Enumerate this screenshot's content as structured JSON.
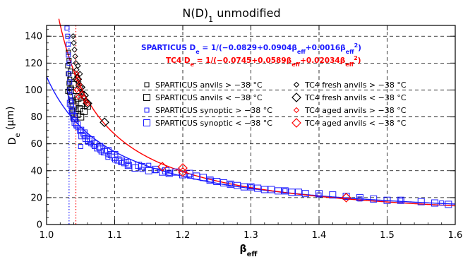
{
  "chart_data": {
    "type": "scatter",
    "title": "N(D)",
    "title_sub": "1",
    "title_tail": " unmodified",
    "xlabel": "β",
    "xlabel_sub": "eff",
    "ylabel": "D",
    "ylabel_sub": "e",
    "ylabel_unit": " (μm)",
    "xlim": [
      1.0,
      1.6
    ],
    "ylim": [
      0,
      148
    ],
    "xticks": [
      1.0,
      1.1,
      1.2,
      1.3,
      1.4,
      1.5,
      1.6
    ],
    "xtick_labels": [
      "1.0",
      "1.1",
      "1.2",
      "1.3",
      "1.4",
      "1.5",
      "1.6"
    ],
    "yticks": [
      0,
      20,
      40,
      60,
      80,
      100,
      120,
      140
    ],
    "ytick_labels": [
      "0",
      "20",
      "40",
      "60",
      "80",
      "100",
      "120",
      "140"
    ],
    "grid": true,
    "colors": {
      "sparticus": "#1a1aff",
      "tc4": "#ff0000",
      "black": "#000000"
    },
    "fits": [
      {
        "label": "SPARTICUS D",
        "label_sub": "e",
        "formula": " = 1/(−0.0829+0.0904β",
        "formula_sub1": "eff",
        "formula_mid": "+0.0016β",
        "formula_sub2": "eff",
        "formula_sup": "2",
        "formula_end": ")",
        "color": "#1a1aff",
        "coef": [
          -0.0829,
          0.0904,
          0.0016
        ],
        "asymptote": 1.033
      },
      {
        "label": "TC4 D",
        "label_sub": "e",
        "formula": " = 1/(−0.0745+0.0589β",
        "formula_sub1": "eff",
        "formula_mid": "+0.02034β",
        "formula_sub2": "eff",
        "formula_sup": "2",
        "formula_end": ")",
        "color": "#ff0000",
        "coef": [
          -0.0745,
          0.0589,
          0.02034
        ],
        "asymptote": 1.043
      }
    ],
    "legend": [
      {
        "label": "SPARTICUS anvils > −38 °C",
        "marker": "square-small",
        "color": "#000000"
      },
      {
        "label": "TC4 fresh anvils > −38 °C",
        "marker": "diamond-small",
        "color": "#000000"
      },
      {
        "label": "SPARTICUS anvils < −38 °C",
        "marker": "square-large",
        "color": "#000000"
      },
      {
        "label": "TC4 fresh anvils < −38 °C",
        "marker": "diamond-large",
        "color": "#000000"
      },
      {
        "label": "SPARTICUS synoptic > −38 °C",
        "marker": "square-small",
        "color": "#1a1aff"
      },
      {
        "label": "TC4 aged anvils > −38 °C",
        "marker": "diamond-small",
        "color": "#ff0000"
      },
      {
        "label": "SPARTICUS synoptic < −38 °C",
        "marker": "square-large",
        "color": "#1a1aff"
      },
      {
        "label": "TC4 aged anvils < −38 °C",
        "marker": "diamond-large",
        "color": "#ff0000"
      }
    ],
    "series": [
      {
        "name": "SPARTICUS anvils > −38 °C",
        "marker": "square-small",
        "color": "#000000",
        "points": [
          [
            1.031,
            118
          ],
          [
            1.032,
            112
          ],
          [
            1.033,
            105
          ],
          [
            1.034,
            98
          ],
          [
            1.033,
            122
          ],
          [
            1.035,
            95
          ],
          [
            1.036,
            88
          ],
          [
            1.034,
            108
          ],
          [
            1.032,
            128
          ],
          [
            1.037,
            92
          ],
          [
            1.035,
            114
          ],
          [
            1.038,
            85
          ],
          [
            1.031,
            99
          ],
          [
            1.036,
            102
          ]
        ]
      },
      {
        "name": "SPARTICUS anvils < −38 °C",
        "marker": "square-large",
        "color": "#000000",
        "points": [
          [
            1.035,
            100
          ],
          [
            1.038,
            92
          ],
          [
            1.04,
            88
          ],
          [
            1.042,
            85
          ],
          [
            1.045,
            82
          ],
          [
            1.048,
            86
          ],
          [
            1.05,
            80
          ],
          [
            1.055,
            84
          ],
          [
            1.052,
            90
          ],
          [
            1.06,
            88
          ],
          [
            1.043,
            95
          ],
          [
            1.037,
            110
          ],
          [
            1.039,
            104
          ],
          [
            1.041,
            79
          ],
          [
            1.046,
            94
          ]
        ]
      },
      {
        "name": "SPARTICUS synoptic > −38 °C",
        "marker": "square-small",
        "color": "#1a1aff",
        "points": [
          [
            1.03,
            146
          ],
          [
            1.031,
            140
          ],
          [
            1.032,
            134
          ],
          [
            1.032,
            126
          ],
          [
            1.033,
            120
          ],
          [
            1.033,
            112
          ],
          [
            1.034,
            106
          ],
          [
            1.034,
            100
          ],
          [
            1.035,
            96
          ],
          [
            1.035,
            92
          ],
          [
            1.036,
            88
          ],
          [
            1.037,
            84
          ],
          [
            1.038,
            82
          ],
          [
            1.04,
            78
          ],
          [
            1.043,
            74
          ],
          [
            1.046,
            72
          ],
          [
            1.05,
            70
          ],
          [
            1.055,
            66
          ],
          [
            1.06,
            62
          ],
          [
            1.065,
            60
          ],
          [
            1.07,
            58
          ],
          [
            1.08,
            54
          ],
          [
            1.09,
            52
          ],
          [
            1.1,
            48
          ],
          [
            1.11,
            46
          ],
          [
            1.12,
            44
          ],
          [
            1.14,
            41
          ],
          [
            1.16,
            40
          ],
          [
            1.18,
            38
          ],
          [
            1.21,
            36
          ],
          [
            1.24,
            33
          ],
          [
            1.27,
            30
          ],
          [
            1.3,
            28
          ],
          [
            1.35,
            25
          ],
          [
            1.4,
            22
          ],
          [
            1.46,
            19
          ],
          [
            1.52,
            18
          ],
          [
            1.58,
            16
          ],
          [
            1.05,
            58
          ],
          [
            1.09,
            50
          ],
          [
            1.12,
            47
          ],
          [
            1.15,
            44
          ]
        ]
      },
      {
        "name": "SPARTICUS synoptic < −38 °C",
        "marker": "square-large",
        "color": "#1a1aff",
        "points": [
          [
            1.035,
            90
          ],
          [
            1.038,
            85
          ],
          [
            1.04,
            80
          ],
          [
            1.042,
            76
          ],
          [
            1.045,
            74
          ],
          [
            1.05,
            70
          ],
          [
            1.052,
            66
          ],
          [
            1.058,
            64
          ],
          [
            1.062,
            62
          ],
          [
            1.07,
            60
          ],
          [
            1.075,
            57
          ],
          [
            1.08,
            56
          ],
          [
            1.085,
            54
          ],
          [
            1.09,
            55
          ],
          [
            1.095,
            52
          ],
          [
            1.1,
            50
          ],
          [
            1.105,
            48
          ],
          [
            1.11,
            47
          ],
          [
            1.115,
            46
          ],
          [
            1.12,
            44
          ],
          [
            1.13,
            42
          ],
          [
            1.14,
            43
          ],
          [
            1.15,
            40
          ],
          [
            1.16,
            41
          ],
          [
            1.17,
            39
          ],
          [
            1.18,
            38
          ],
          [
            1.19,
            39
          ],
          [
            1.2,
            37
          ],
          [
            1.21,
            38
          ],
          [
            1.22,
            36
          ],
          [
            1.23,
            35
          ],
          [
            1.24,
            33
          ],
          [
            1.25,
            32
          ],
          [
            1.26,
            31
          ],
          [
            1.27,
            30
          ],
          [
            1.28,
            29
          ],
          [
            1.29,
            28
          ],
          [
            1.3,
            28
          ],
          [
            1.31,
            27
          ],
          [
            1.32,
            26
          ],
          [
            1.33,
            26
          ],
          [
            1.35,
            25
          ],
          [
            1.36,
            24
          ],
          [
            1.38,
            23
          ],
          [
            1.4,
            23
          ],
          [
            1.42,
            22
          ],
          [
            1.44,
            21
          ],
          [
            1.46,
            20
          ],
          [
            1.48,
            19
          ],
          [
            1.5,
            18
          ],
          [
            1.52,
            18
          ],
          [
            1.55,
            17
          ],
          [
            1.57,
            16
          ],
          [
            1.59,
            15
          ],
          [
            1.055,
            68
          ],
          [
            1.065,
            63
          ],
          [
            1.078,
            58
          ],
          [
            1.1,
            52
          ],
          [
            1.135,
            44
          ],
          [
            1.175,
            40
          ],
          [
            1.34,
            25
          ],
          [
            1.37,
            24
          ]
        ]
      },
      {
        "name": "TC4 fresh anvils > −38 °C",
        "marker": "diamond-small",
        "color": "#000000",
        "points": [
          [
            1.039,
            140
          ],
          [
            1.04,
            135
          ],
          [
            1.041,
            130
          ],
          [
            1.042,
            125
          ],
          [
            1.043,
            120
          ],
          [
            1.044,
            115
          ],
          [
            1.045,
            110
          ],
          [
            1.047,
            106
          ],
          [
            1.05,
            102
          ],
          [
            1.052,
            98
          ],
          [
            1.055,
            95
          ],
          [
            1.058,
            92
          ],
          [
            1.046,
            118
          ],
          [
            1.049,
            112
          ]
        ]
      },
      {
        "name": "TC4 fresh anvils < −38 °C",
        "marker": "diamond-large",
        "color": "#000000",
        "points": [
          [
            1.05,
            102
          ],
          [
            1.055,
            96
          ],
          [
            1.06,
            90
          ],
          [
            1.085,
            76
          ],
          [
            1.045,
            108
          ]
        ]
      },
      {
        "name": "TC4 aged anvils > −38 °C",
        "marker": "diamond-small",
        "color": "#ff0000",
        "points": [
          [
            1.044,
            112
          ],
          [
            1.046,
            108
          ],
          [
            1.048,
            104
          ],
          [
            1.05,
            100
          ],
          [
            1.052,
            97
          ],
          [
            1.055,
            94
          ],
          [
            1.058,
            91
          ],
          [
            1.06,
            90
          ],
          [
            1.044,
            100
          ],
          [
            1.047,
            95
          ]
        ]
      },
      {
        "name": "TC4 aged anvils < −38 °C",
        "marker": "diamond-large",
        "color": "#ff0000",
        "points": [
          [
            1.17,
            43
          ],
          [
            1.2,
            42
          ],
          [
            1.2,
            39
          ],
          [
            1.44,
            20
          ]
        ]
      }
    ]
  }
}
